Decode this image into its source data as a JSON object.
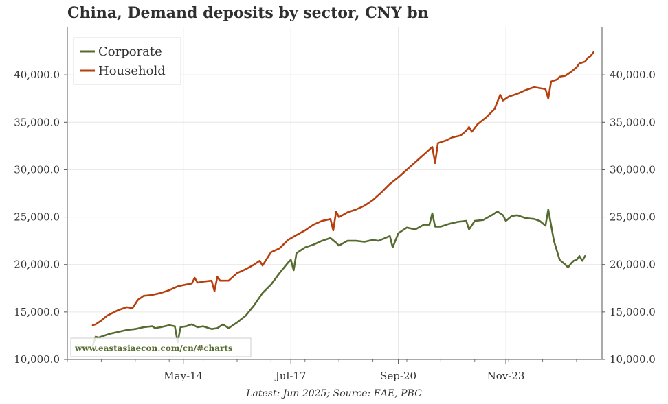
{
  "chart_data": {
    "type": "line",
    "title": "China, Demand deposits by sector, CNY bn",
    "footnote": "Latest: Jun 2025; Source: EAE, PBC",
    "watermark": "www.eastasiaecon.com/cn/#charts",
    "x_tick_labels": [
      "May-14",
      "Jul-17",
      "Sep-20",
      "Nov-23"
    ],
    "y_tick_labels": [
      "10,000.0",
      "15,000.0",
      "20,000.0",
      "25,000.0",
      "30,000.0",
      "35,000.0",
      "40,000.0"
    ],
    "ylim": [
      10000,
      45000
    ],
    "xlim": [
      "2010-12",
      "2026-09"
    ],
    "grid": true,
    "legend_position": "top-left",
    "series": [
      {
        "name": "Corporate",
        "color": "#556b2f",
        "points": [
          [
            "2011-09",
            11500
          ],
          [
            "2011-10",
            12400
          ],
          [
            "2011-11",
            12300
          ],
          [
            "2012-01",
            12500
          ],
          [
            "2012-03",
            12700
          ],
          [
            "2012-06",
            12900
          ],
          [
            "2012-09",
            13100
          ],
          [
            "2012-12",
            13200
          ],
          [
            "2013-03",
            13400
          ],
          [
            "2013-06",
            13500
          ],
          [
            "2013-07",
            13300
          ],
          [
            "2013-09",
            13400
          ],
          [
            "2013-12",
            13600
          ],
          [
            "2014-02",
            13500
          ],
          [
            "2014-03",
            11800
          ],
          [
            "2014-04",
            13400
          ],
          [
            "2014-06",
            13500
          ],
          [
            "2014-08",
            13700
          ],
          [
            "2014-10",
            13400
          ],
          [
            "2014-12",
            13500
          ],
          [
            "2015-03",
            13200
          ],
          [
            "2015-05",
            13300
          ],
          [
            "2015-07",
            13700
          ],
          [
            "2015-09",
            13300
          ],
          [
            "2015-12",
            13900
          ],
          [
            "2016-03",
            14600
          ],
          [
            "2016-06",
            15700
          ],
          [
            "2016-09",
            17000
          ],
          [
            "2016-12",
            17900
          ],
          [
            "2017-03",
            19100
          ],
          [
            "2017-06",
            20200
          ],
          [
            "2017-07",
            20500
          ],
          [
            "2017-08",
            19400
          ],
          [
            "2017-09",
            21200
          ],
          [
            "2017-12",
            21800
          ],
          [
            "2018-03",
            22100
          ],
          [
            "2018-06",
            22500
          ],
          [
            "2018-09",
            22800
          ],
          [
            "2018-11",
            22300
          ],
          [
            "2018-12",
            22000
          ],
          [
            "2019-03",
            22500
          ],
          [
            "2019-06",
            22500
          ],
          [
            "2019-09",
            22400
          ],
          [
            "2019-12",
            22600
          ],
          [
            "2020-02",
            22500
          ],
          [
            "2020-06",
            23000
          ],
          [
            "2020-07",
            21800
          ],
          [
            "2020-09",
            23300
          ],
          [
            "2020-12",
            23900
          ],
          [
            "2021-03",
            23700
          ],
          [
            "2021-06",
            24200
          ],
          [
            "2021-08",
            24200
          ],
          [
            "2021-09",
            25400
          ],
          [
            "2021-10",
            24000
          ],
          [
            "2021-12",
            24000
          ],
          [
            "2022-03",
            24300
          ],
          [
            "2022-06",
            24500
          ],
          [
            "2022-09",
            24600
          ],
          [
            "2022-10",
            23700
          ],
          [
            "2022-12",
            24600
          ],
          [
            "2023-03",
            24700
          ],
          [
            "2023-06",
            25200
          ],
          [
            "2023-08",
            25600
          ],
          [
            "2023-10",
            25200
          ],
          [
            "2023-11",
            24600
          ],
          [
            "2024-01",
            25100
          ],
          [
            "2024-03",
            25200
          ],
          [
            "2024-06",
            24900
          ],
          [
            "2024-09",
            24800
          ],
          [
            "2024-11",
            24600
          ],
          [
            "2025-01",
            24100
          ],
          [
            "2025-02",
            25800
          ],
          [
            "2025-04",
            22500
          ],
          [
            "2025-06",
            20500
          ],
          [
            "2025-08",
            20000
          ],
          [
            "2025-09",
            19700
          ],
          [
            "2025-10",
            20100
          ],
          [
            "2025-11",
            20400
          ],
          [
            "2025-12",
            20500
          ],
          [
            "2026-01",
            20900
          ],
          [
            "2026-02",
            20400
          ],
          [
            "2026-03",
            20900
          ]
        ]
      },
      {
        "name": "Household",
        "color": "#b5400e",
        "points": [
          [
            "2011-09",
            13600
          ],
          [
            "2011-10",
            13700
          ],
          [
            "2011-12",
            14100
          ],
          [
            "2012-02",
            14600
          ],
          [
            "2012-04",
            14900
          ],
          [
            "2012-06",
            15200
          ],
          [
            "2012-09",
            15500
          ],
          [
            "2012-11",
            15400
          ],
          [
            "2013-01",
            16300
          ],
          [
            "2013-03",
            16700
          ],
          [
            "2013-06",
            16800
          ],
          [
            "2013-09",
            17000
          ],
          [
            "2013-12",
            17300
          ],
          [
            "2014-03",
            17700
          ],
          [
            "2014-06",
            17900
          ],
          [
            "2014-08",
            18000
          ],
          [
            "2014-09",
            18600
          ],
          [
            "2014-10",
            18100
          ],
          [
            "2014-12",
            18200
          ],
          [
            "2015-03",
            18300
          ],
          [
            "2015-04",
            17200
          ],
          [
            "2015-05",
            18700
          ],
          [
            "2015-06",
            18300
          ],
          [
            "2015-09",
            18300
          ],
          [
            "2015-12",
            19100
          ],
          [
            "2016-03",
            19500
          ],
          [
            "2016-06",
            20000
          ],
          [
            "2016-08",
            20400
          ],
          [
            "2016-09",
            19900
          ],
          [
            "2016-12",
            21300
          ],
          [
            "2017-03",
            21700
          ],
          [
            "2017-06",
            22600
          ],
          [
            "2017-09",
            23100
          ],
          [
            "2017-12",
            23600
          ],
          [
            "2018-03",
            24200
          ],
          [
            "2018-06",
            24600
          ],
          [
            "2018-09",
            24800
          ],
          [
            "2018-10",
            23600
          ],
          [
            "2018-11",
            25600
          ],
          [
            "2018-12",
            25000
          ],
          [
            "2019-03",
            25500
          ],
          [
            "2019-06",
            25800
          ],
          [
            "2019-09",
            26200
          ],
          [
            "2019-12",
            26800
          ],
          [
            "2020-03",
            27600
          ],
          [
            "2020-06",
            28500
          ],
          [
            "2020-09",
            29200
          ],
          [
            "2020-12",
            30000
          ],
          [
            "2021-03",
            30800
          ],
          [
            "2021-06",
            31600
          ],
          [
            "2021-09",
            32400
          ],
          [
            "2021-10",
            30700
          ],
          [
            "2021-11",
            32800
          ],
          [
            "2022-02",
            33100
          ],
          [
            "2022-04",
            33400
          ],
          [
            "2022-07",
            33600
          ],
          [
            "2022-09",
            34100
          ],
          [
            "2022-10",
            34500
          ],
          [
            "2022-11",
            34000
          ],
          [
            "2023-01",
            34800
          ],
          [
            "2023-04",
            35500
          ],
          [
            "2023-07",
            36400
          ],
          [
            "2023-09",
            37900
          ],
          [
            "2023-10",
            37300
          ],
          [
            "2023-12",
            37700
          ],
          [
            "2024-03",
            38000
          ],
          [
            "2024-06",
            38400
          ],
          [
            "2024-09",
            38700
          ],
          [
            "2024-11",
            38600
          ],
          [
            "2025-01",
            38500
          ],
          [
            "2025-02",
            37500
          ],
          [
            "2025-03",
            39300
          ],
          [
            "2025-05",
            39500
          ],
          [
            "2025-06",
            39800
          ],
          [
            "2025-08",
            39900
          ],
          [
            "2025-10",
            40300
          ],
          [
            "2025-12",
            40800
          ],
          [
            "2026-01",
            41200
          ],
          [
            "2026-03",
            41400
          ],
          [
            "2026-04",
            41800
          ],
          [
            "2026-05",
            42000
          ],
          [
            "2026-06",
            42400
          ]
        ]
      }
    ]
  }
}
